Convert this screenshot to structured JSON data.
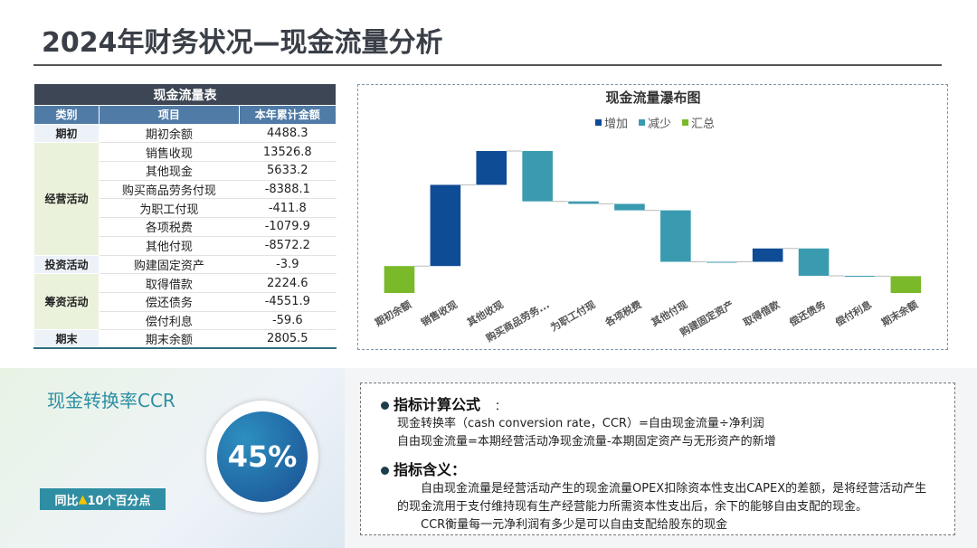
{
  "title": "2024年财务状况—现金流量分析",
  "table": {
    "title": "现金流量表",
    "headers": [
      "类别",
      "项目",
      "本年累计金额"
    ],
    "groups": [
      {
        "name": "期初",
        "rows": [
          [
            "期初余额",
            "4488.3"
          ]
        ]
      },
      {
        "name": "经营活动",
        "rows": [
          [
            "销售收现",
            "13526.8"
          ],
          [
            "其他现金",
            "5633.2"
          ],
          [
            "购买商品劳务付现",
            "-8388.1"
          ],
          [
            "为职工付现",
            "-411.8"
          ],
          [
            "各项税费",
            "-1079.9"
          ],
          [
            "其他付现",
            "-8572.2"
          ]
        ]
      },
      {
        "name": "投资活动",
        "rows": [
          [
            "购建固定资产",
            "-3.9"
          ]
        ]
      },
      {
        "name": "筹资活动",
        "rows": [
          [
            "取得借款",
            "2224.6"
          ],
          [
            "偿还债务",
            "-4551.9"
          ],
          [
            "偿付利息",
            "-59.6"
          ]
        ]
      },
      {
        "name": "期末",
        "rows": [
          [
            "期末余额",
            "2805.5"
          ]
        ]
      }
    ]
  },
  "chart_data": {
    "type": "waterfall",
    "title": "现金流量瀑布图",
    "categories": [
      "期初余额",
      "销售收现",
      "其他收现",
      "购买商品劳务...",
      "为职工付现",
      "各项税费",
      "其他付现",
      "购建固定资产",
      "取得借款",
      "偿还债务",
      "偿付利息",
      "期末余额"
    ],
    "values": [
      4488.3,
      13526.8,
      5633.2,
      -8388.1,
      -411.8,
      -1079.9,
      -8572.2,
      -3.9,
      2224.6,
      -4551.9,
      -59.6,
      2805.5
    ],
    "legend": [
      {
        "name": "增加",
        "color": "#0f4c96"
      },
      {
        "name": "减少",
        "color": "#3a9bb0"
      },
      {
        "name": "汇总",
        "color": "#7ab929"
      }
    ]
  },
  "ccr": {
    "title": "现金转换率CCR",
    "value": "45%",
    "badge_prefix": "同比",
    "badge_arrow": "▲",
    "badge_text": "10个百分点"
  },
  "notes": {
    "formula_title": "指标计算公式",
    "formula_colon": "：",
    "formula_lines": [
      "现金转换率（cash conversion rate，CCR）=自由现金流量÷净利润",
      "自由现金流量=本期经营活动净现金流量-本期固定资产与无形资产的新增"
    ],
    "meaning_title": "指标含义：",
    "meaning_lines": [
      "自由现金流量是经营活动产生的现金流量OPEX扣除资本性支出CAPEX的差额，是将经营活动产生",
      "的现金流用于支付维持现有生产经营能力所需资本性支出后，余下的能够自由支配的现金。",
      "CCR衡量每一元净利润有多少是可以自由支配给股东的现金"
    ]
  }
}
